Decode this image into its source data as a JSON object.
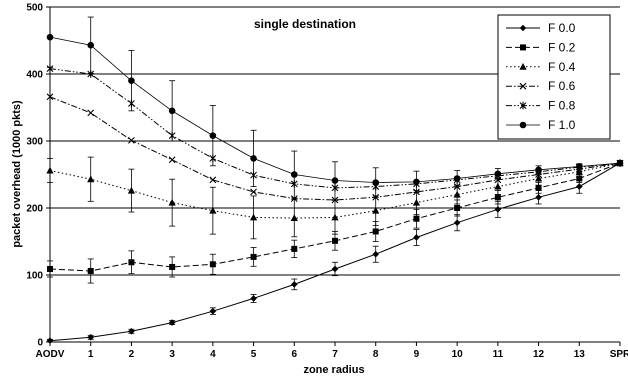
{
  "chart_data": {
    "type": "line",
    "title": "single destination",
    "xlabel": "zone radius",
    "ylabel": "packet overhead (1000 pkts)",
    "x_categories": [
      "AODV",
      "1",
      "2",
      "3",
      "4",
      "5",
      "6",
      "7",
      "8",
      "9",
      "10",
      "11",
      "12",
      "13",
      "SPR"
    ],
    "ylim": [
      0,
      500
    ],
    "y_ticks": [
      0,
      100,
      200,
      300,
      400,
      500
    ],
    "grid": "horizontal",
    "legend_position": "top-right",
    "series": [
      {
        "name": "F 0.0",
        "marker": "diamond",
        "dash": "solid",
        "values": [
          2,
          7,
          16,
          29,
          46,
          65,
          86,
          109,
          131,
          156,
          178,
          198,
          216,
          232,
          267
        ],
        "errors": [
          2,
          3,
          3,
          3,
          5,
          6,
          8,
          10,
          12,
          12,
          12,
          12,
          10,
          10,
          0
        ]
      },
      {
        "name": "F 0.2",
        "marker": "square",
        "dash": "dash",
        "values": [
          109,
          106,
          119,
          112,
          116,
          127,
          139,
          151,
          165,
          184,
          200,
          216,
          230,
          244,
          267
        ],
        "errors": [
          12,
          18,
          17,
          15,
          15,
          14,
          13,
          14,
          15,
          14,
          12,
          10,
          8,
          6,
          0
        ]
      },
      {
        "name": "F 0.4",
        "marker": "triangle",
        "dash": "dot",
        "values": [
          256,
          243,
          226,
          208,
          196,
          186,
          185,
          186,
          196,
          208,
          220,
          232,
          244,
          254,
          267
        ],
        "errors": [
          18,
          33,
          32,
          35,
          35,
          32,
          28,
          25,
          22,
          18,
          14,
          12,
          10,
          8,
          0
        ]
      },
      {
        "name": "F 0.6",
        "marker": "x",
        "dash": "dashdot",
        "values": [
          366,
          342,
          301,
          272,
          242,
          224,
          214,
          212,
          216,
          224,
          232,
          242,
          250,
          258,
          267
        ],
        "errors": [
          0,
          0,
          0,
          0,
          0,
          0,
          0,
          0,
          0,
          0,
          0,
          0,
          0,
          0,
          0
        ]
      },
      {
        "name": "F 0.8",
        "marker": "star",
        "dash": "dashdotdot",
        "values": [
          408,
          400,
          356,
          308,
          274,
          249,
          236,
          230,
          232,
          236,
          242,
          248,
          254,
          261,
          267
        ],
        "errors": [
          0,
          0,
          0,
          0,
          0,
          0,
          0,
          0,
          0,
          0,
          0,
          0,
          0,
          0,
          0
        ]
      },
      {
        "name": "F 1.0",
        "marker": "circle",
        "dash": "solid-thin",
        "values": [
          455,
          443,
          390,
          345,
          308,
          274,
          250,
          241,
          238,
          239,
          244,
          251,
          257,
          262,
          267
        ],
        "errors": [
          45,
          42,
          45,
          45,
          45,
          42,
          35,
          28,
          22,
          16,
          12,
          8,
          6,
          4,
          0
        ]
      }
    ]
  }
}
